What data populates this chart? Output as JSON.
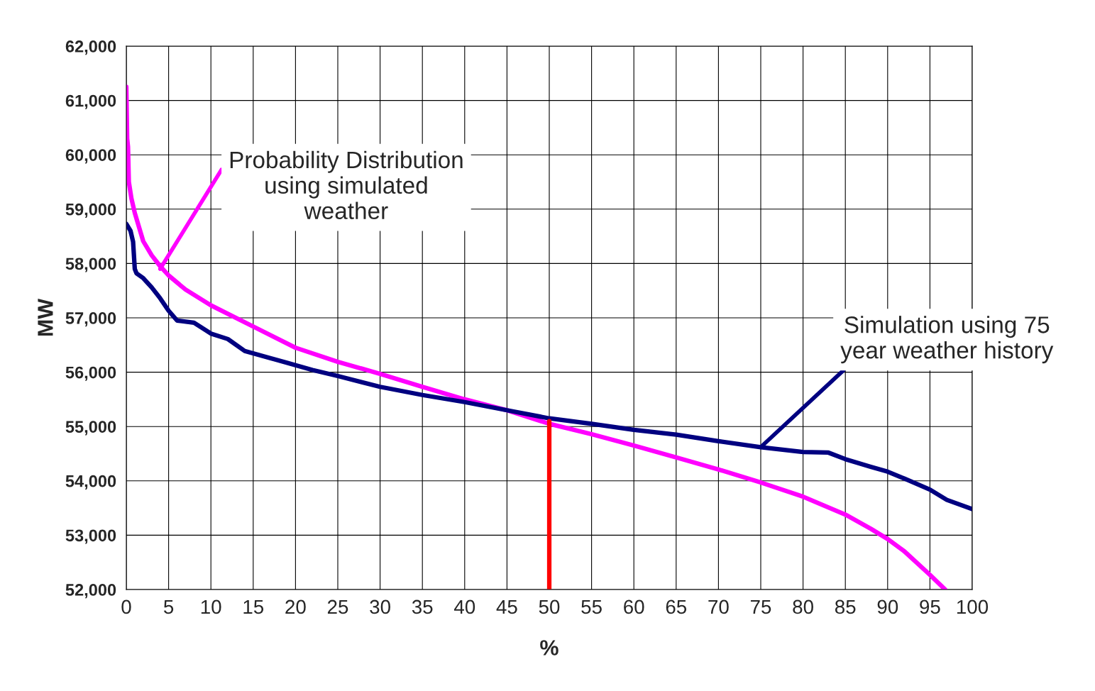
{
  "chart_data": {
    "type": "line",
    "xlabel": "%",
    "ylabel": "MW",
    "xlim": [
      0,
      100
    ],
    "xticks": [
      0,
      5,
      10,
      15,
      20,
      25,
      30,
      35,
      40,
      45,
      50,
      55,
      60,
      65,
      70,
      75,
      80,
      85,
      90,
      95,
      100
    ],
    "ylim": [
      52000,
      62000
    ],
    "yticks": [
      {
        "value": 52000,
        "label": "52,000"
      },
      {
        "value": 53000,
        "label": "53,000"
      },
      {
        "value": 54000,
        "label": "54,000"
      },
      {
        "value": 55000,
        "label": "55,000"
      },
      {
        "value": 56000,
        "label": "56,000"
      },
      {
        "value": 57000,
        "label": "57,000"
      },
      {
        "value": 58000,
        "label": "58,000"
      },
      {
        "value": 59000,
        "label": "59,000"
      },
      {
        "value": 60000,
        "label": "60,000"
      },
      {
        "value": 61000,
        "label": "61,000"
      },
      {
        "value": 62000,
        "label": "62,000"
      }
    ],
    "grid": true,
    "marker": "none",
    "line_style": "solid",
    "series": [
      {
        "color": "#ff00ff",
        "x": [
          0,
          0.1,
          0.2,
          0.3,
          0.6,
          1,
          2,
          3,
          4,
          5,
          7,
          10,
          15,
          20,
          25,
          30,
          35,
          40,
          45,
          50,
          55,
          60,
          65,
          70,
          75,
          80,
          85,
          88,
          90,
          92,
          95,
          96.8
        ],
        "values": [
          61250,
          60300,
          60150,
          59500,
          59200,
          58930,
          58410,
          58150,
          57950,
          57780,
          57520,
          57230,
          56840,
          56450,
          56190,
          55970,
          55730,
          55500,
          55300,
          55050,
          54860,
          54650,
          54430,
          54210,
          53970,
          53710,
          53380,
          53120,
          52930,
          52700,
          52270,
          52000
        ]
      },
      {
        "color": "#000080",
        "x": [
          0,
          0.5,
          0.8,
          1,
          1.2,
          2,
          3,
          4,
          5,
          6,
          8,
          10,
          12,
          14,
          17,
          20,
          22,
          25,
          30,
          35,
          40,
          45,
          50,
          55,
          60,
          65,
          70,
          75,
          80,
          83,
          85,
          88,
          90,
          92,
          95,
          97,
          100
        ],
        "values": [
          58730,
          58600,
          58400,
          57900,
          57820,
          57730,
          57560,
          57360,
          57130,
          56950,
          56910,
          56710,
          56610,
          56390,
          56260,
          56130,
          56040,
          55930,
          55730,
          55580,
          55450,
          55300,
          55150,
          55050,
          54940,
          54850,
          54730,
          54620,
          54530,
          54520,
          54400,
          54260,
          54170,
          54040,
          53840,
          53650,
          53480
        ]
      },
      {
        "color": "#ff0000",
        "x": [
          50,
          50
        ],
        "values": [
          52000,
          55100
        ]
      }
    ],
    "annotations": [
      {
        "text": "Probability Distribution\nusing simulated\nweather",
        "x": 4,
        "y": 57900
      },
      {
        "text": "Simulation using 75\nyear weather history",
        "x": 75,
        "y": 54620
      }
    ]
  }
}
